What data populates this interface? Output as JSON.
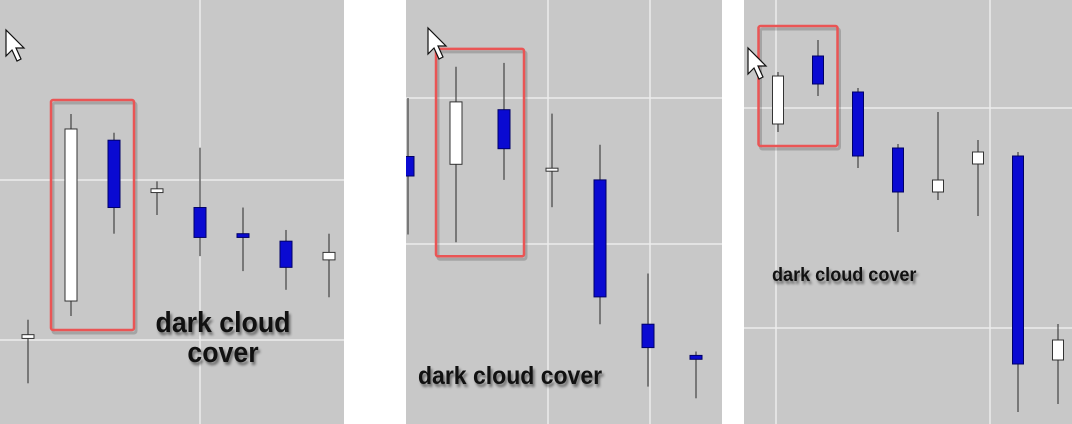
{
  "colors": {
    "background": "#c8c8c8",
    "grid": "#ececec",
    "bull_fill": "#ffffff",
    "bear_fill": "#0a0ad2",
    "wick": "#444444",
    "highlight": "#ea5555"
  },
  "chart_data": [
    {
      "type": "candlestick",
      "caption": "dark cloud\ncover",
      "pattern_highlight": [
        1,
        2
      ],
      "grid": true,
      "price_range": [
        0,
        100
      ],
      "candles": [
        {
          "open": 17,
          "high": 22,
          "low": 5,
          "close": 18,
          "color": "white"
        },
        {
          "open": 27,
          "high": 77,
          "low": 23,
          "close": 73,
          "color": "white"
        },
        {
          "open": 70,
          "high": 72,
          "low": 45,
          "close": 52,
          "color": "blue"
        },
        {
          "open": 56,
          "high": 59,
          "low": 50,
          "close": 57,
          "color": "white"
        },
        {
          "open": 52,
          "high": 68,
          "low": 39,
          "close": 44,
          "color": "blue"
        },
        {
          "open": 45,
          "high": 52,
          "low": 35,
          "close": 44,
          "color": "blue"
        },
        {
          "open": 43,
          "high": 46,
          "low": 30,
          "close": 36,
          "color": "blue"
        },
        {
          "open": 38,
          "high": 45,
          "low": 28,
          "close": 40,
          "color": "white"
        }
      ]
    },
    {
      "type": "candlestick",
      "caption": "dark cloud cover",
      "pattern_highlight": [
        1,
        2
      ],
      "grid": true,
      "price_range": [
        0,
        100
      ],
      "candles": [
        {
          "open": 65,
          "high": 80,
          "low": 45,
          "close": 60,
          "color": "blue"
        },
        {
          "open": 63,
          "high": 88,
          "low": 43,
          "close": 79,
          "color": "white"
        },
        {
          "open": 77,
          "high": 89,
          "low": 59,
          "close": 67,
          "color": "blue"
        },
        {
          "open": 62,
          "high": 76,
          "low": 52,
          "close": 62,
          "color": "white"
        },
        {
          "open": 59,
          "high": 68,
          "low": 22,
          "close": 29,
          "color": "blue"
        },
        {
          "open": 22,
          "high": 35,
          "low": 6,
          "close": 16,
          "color": "blue"
        },
        {
          "open": 14,
          "high": 15,
          "low": 3,
          "close": 13,
          "color": "blue"
        }
      ]
    },
    {
      "type": "candlestick",
      "caption": "dark cloud cover",
      "pattern_highlight": [
        0,
        1
      ],
      "grid": true,
      "price_range": [
        0,
        100
      ],
      "candles": [
        {
          "open": 74,
          "high": 87,
          "low": 72,
          "close": 86,
          "color": "white"
        },
        {
          "open": 91,
          "high": 95,
          "low": 81,
          "close": 84,
          "color": "blue"
        },
        {
          "open": 82,
          "high": 83,
          "low": 63,
          "close": 66,
          "color": "blue"
        },
        {
          "open": 68,
          "high": 69,
          "low": 47,
          "close": 57,
          "color": "blue"
        },
        {
          "open": 57,
          "high": 77,
          "low": 55,
          "close": 60,
          "color": "white"
        },
        {
          "open": 64,
          "high": 70,
          "low": 51,
          "close": 67,
          "color": "white"
        },
        {
          "open": 66,
          "high": 67,
          "low": 2,
          "close": 14,
          "color": "blue"
        },
        {
          "open": 15,
          "high": 24,
          "low": 4,
          "close": 20,
          "color": "white"
        }
      ]
    }
  ]
}
